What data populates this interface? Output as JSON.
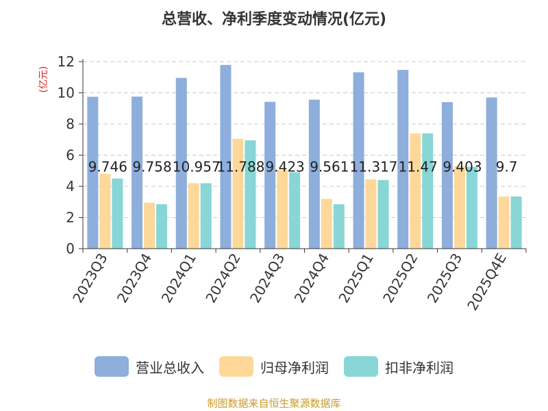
{
  "colors": {
    "revenue": "#8eaedc",
    "net_profit": "#fed89a",
    "deducted_profit": "#88d6d6",
    "y_unit": "#e0201a",
    "source": "#c79a2e"
  },
  "chart_data": {
    "type": "bar",
    "title": "总营收、净利季度变动情况(亿元)",
    "y_unit": "(亿元)",
    "ylim": [
      0,
      12
    ],
    "yticks": [
      0,
      2,
      4,
      6,
      8,
      10,
      12
    ],
    "grid": true,
    "legend_position": "bottom",
    "categories": [
      "2023Q3",
      "2023Q4",
      "2024Q1",
      "2024Q2",
      "2024Q3",
      "2024Q4",
      "2025Q1",
      "2025Q2",
      "2025Q3",
      "2025Q4E"
    ],
    "series": [
      {
        "name": "营业总收入",
        "values": [
          9.746,
          9.758,
          10.957,
          11.788,
          9.423,
          9.561,
          11.317,
          11.47,
          9.403,
          9.7
        ],
        "labels": [
          "9.746",
          "9.758",
          "10.957",
          "11.788",
          "9.423",
          "9.561",
          "11.317",
          "11.47",
          "9.403",
          "9.7"
        ]
      },
      {
        "name": "归母净利润",
        "values": [
          4.8,
          2.95,
          4.2,
          7.05,
          5.05,
          3.2,
          4.45,
          7.4,
          5.3,
          3.35
        ]
      },
      {
        "name": "扣非净利润",
        "values": [
          4.5,
          2.85,
          4.2,
          6.95,
          4.9,
          2.85,
          4.4,
          7.4,
          5.25,
          3.35
        ]
      }
    ]
  },
  "legend": [
    {
      "label": "营业总收入",
      "color_key": "revenue"
    },
    {
      "label": "归母净利润",
      "color_key": "net_profit"
    },
    {
      "label": "扣非净利润",
      "color_key": "deducted_profit"
    }
  ],
  "source_text": "制图数据来自恒生聚源数据库"
}
